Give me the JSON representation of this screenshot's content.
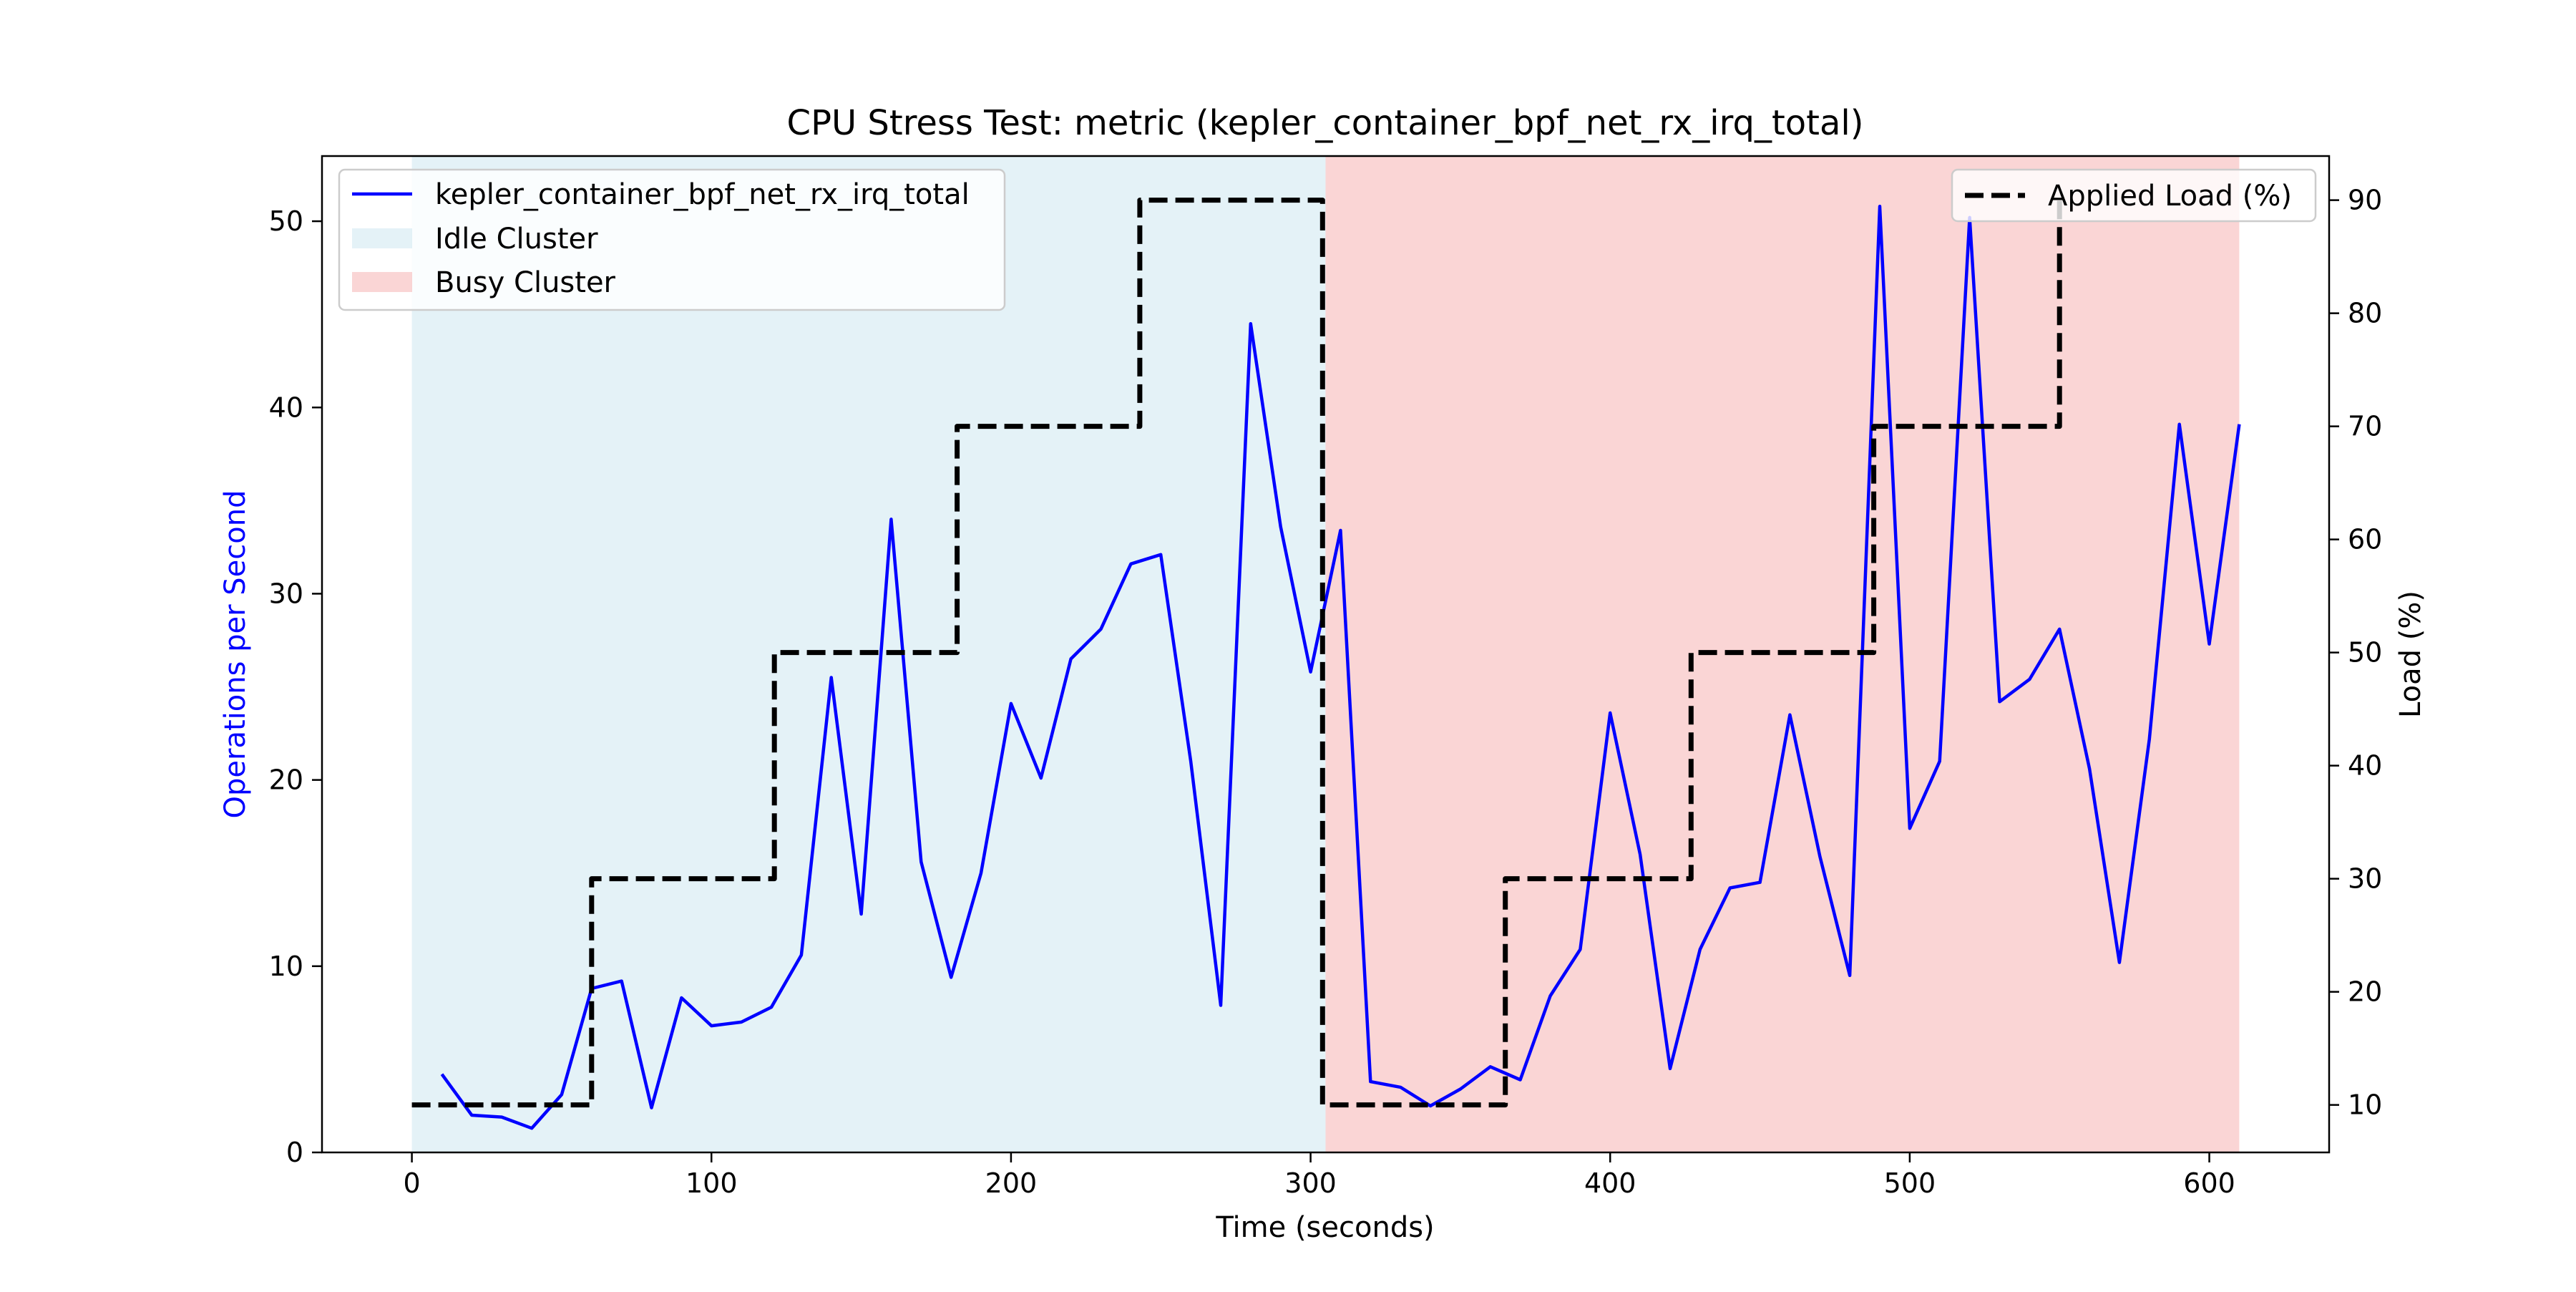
{
  "chart_data": {
    "type": "line",
    "title": "CPU Stress Test: metric (kepler_container_bpf_net_rx_irq_total)",
    "xlabel": "Time (seconds)",
    "ylabel": "Operations per Second",
    "ylabel_right": "Load (%)",
    "xlim": [
      -30,
      640
    ],
    "ylim": [
      0,
      53.5
    ],
    "ylim_right": [
      5.8,
      93.9
    ],
    "x_ticks": [
      0,
      100,
      200,
      300,
      400,
      500,
      600
    ],
    "y_ticks": [
      0,
      10,
      20,
      30,
      40,
      50
    ],
    "y_ticks_right": [
      10,
      20,
      30,
      40,
      50,
      60,
      70,
      80,
      90
    ],
    "grid": false,
    "legend_left_placement": "upper-left",
    "legend_right_placement": "upper-right",
    "regions": [
      {
        "name": "Idle Cluster",
        "x_start": 0,
        "x_end": 305,
        "color": "#add8e6",
        "opacity": 0.33
      },
      {
        "name": "Busy Cluster",
        "x_start": 305,
        "x_end": 610,
        "color": "#f08080",
        "opacity": 0.33
      }
    ],
    "series": [
      {
        "name": "kepler_container_bpf_net_rx_irq_total",
        "axis": "left",
        "color": "#0000ff",
        "style": "solid",
        "x": [
          10,
          20,
          30,
          40,
          50,
          60,
          70,
          80,
          90,
          100,
          110,
          120,
          130,
          140,
          150,
          160,
          170,
          180,
          190,
          200,
          210,
          220,
          230,
          240,
          250,
          260,
          270,
          280,
          290,
          300,
          310,
          320,
          330,
          340,
          350,
          360,
          370,
          380,
          390,
          400,
          410,
          420,
          430,
          440,
          450,
          460,
          470,
          480,
          490,
          500,
          510,
          520,
          530,
          540,
          550,
          560,
          570,
          580,
          590,
          600,
          610
        ],
        "y": [
          4.2,
          2.0,
          1.9,
          1.3,
          3.1,
          8.8,
          9.2,
          2.4,
          8.3,
          6.8,
          7.0,
          7.8,
          10.6,
          25.5,
          12.8,
          34.0,
          15.6,
          9.4,
          15.0,
          24.1,
          20.1,
          26.5,
          28.1,
          31.6,
          32.1,
          21.0,
          7.9,
          44.5,
          33.6,
          25.8,
          33.4,
          3.8,
          3.5,
          2.5,
          3.4,
          4.6,
          3.9,
          8.4,
          10.9,
          23.6,
          16.0,
          4.5,
          10.9,
          14.2,
          14.5,
          23.5,
          15.9,
          9.5,
          50.8,
          17.4,
          21.0,
          50.2,
          24.2,
          25.4,
          28.1,
          20.6,
          10.2,
          22.2,
          39.1,
          27.3,
          39.1
        ]
      },
      {
        "name": "Applied Load (%)",
        "axis": "right",
        "color": "#000000",
        "style": "dashed",
        "x": [
          0,
          60,
          60,
          121,
          121,
          182,
          182,
          243,
          243,
          304,
          304,
          365,
          365,
          427,
          427,
          488,
          488,
          550,
          550
        ],
        "y": [
          10,
          10,
          30,
          30,
          50,
          50,
          70,
          70,
          90,
          90,
          10,
          10,
          30,
          30,
          50,
          50,
          70,
          70,
          90
        ]
      }
    ]
  }
}
